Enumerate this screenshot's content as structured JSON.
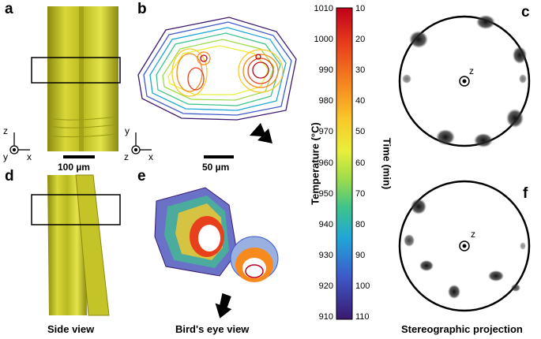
{
  "panels": {
    "a": "a",
    "b": "b",
    "c": "c",
    "d": "d",
    "e": "e",
    "f": "f"
  },
  "scale_bars": {
    "a": "100 µm",
    "b": "50 µm"
  },
  "axes": {
    "z": "z",
    "x": "x",
    "y": "y"
  },
  "captions": {
    "side": "Side view",
    "bird": "Bird's eye view",
    "stereo": "Stereographic projection"
  },
  "colorbar": {
    "left_title": "Temperature (°C)",
    "right_title": "Time (min)",
    "left_ticks": [
      "1010",
      "1000",
      "990",
      "980",
      "970",
      "960",
      "950",
      "940",
      "930",
      "920",
      "910"
    ],
    "right_ticks": [
      "10",
      "20",
      "30",
      "40",
      "50",
      "60",
      "70",
      "80",
      "90",
      "100",
      "110"
    ],
    "colors": [
      "#d7191c",
      "#f46d43",
      "#fdae61",
      "#fee08b",
      "#d9ef8b",
      "#a6d96a",
      "#66c2a5",
      "#3288bd",
      "#5e4fa2",
      "#3b2a78"
    ]
  },
  "stereo": {
    "pole_label": "z"
  }
}
